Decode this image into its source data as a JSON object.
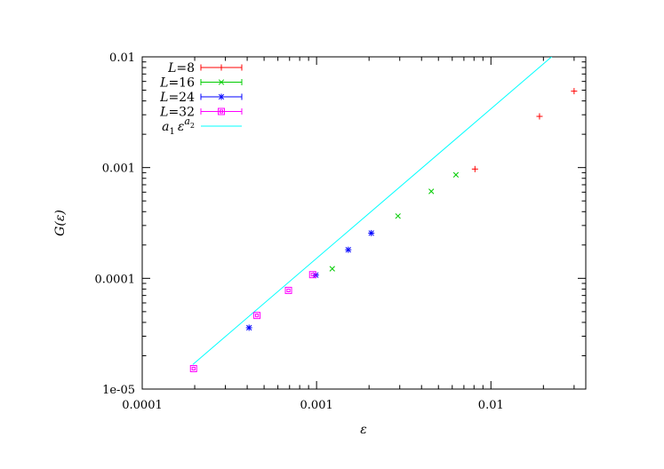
{
  "chart_data": {
    "type": "scatter",
    "title": "",
    "xlabel": "ε",
    "ylabel": "G(ε)",
    "xscale": "log",
    "yscale": "log",
    "xlim": [
      0.0001,
      0.035
    ],
    "ylim": [
      1e-05,
      0.01
    ],
    "x_ticks": [
      0.0001,
      0.001,
      0.01
    ],
    "x_tick_labels": [
      "0.0001",
      "0.001",
      "0.01"
    ],
    "y_ticks": [
      1e-05,
      0.0001,
      0.001,
      0.01
    ],
    "y_tick_labels": [
      "1e-05",
      "0.0001",
      "0.001",
      "0.01"
    ],
    "grid": false,
    "legend_position": "top-left",
    "series": [
      {
        "name": "L=8",
        "legend_var": "L",
        "legend_val": "=8",
        "marker": "plus",
        "color": "#ff0000",
        "x": [
          0.0081,
          0.019,
          0.03
        ],
        "y": [
          0.00097,
          0.0029,
          0.0049
        ]
      },
      {
        "name": "L=16",
        "legend_var": "L",
        "legend_val": "=16",
        "marker": "cross",
        "color": "#00cc00",
        "x": [
          0.00123,
          0.00293,
          0.00455,
          0.0063
        ],
        "y": [
          0.000122,
          0.000365,
          0.00061,
          0.00086
        ]
      },
      {
        "name": "L=24",
        "legend_var": "L",
        "legend_val": "=24",
        "marker": "star",
        "color": "#0000ff",
        "x": [
          0.00041,
          0.00099,
          0.00152,
          0.00206
        ],
        "y": [
          3.58e-05,
          0.000107,
          0.000181,
          0.000256
        ]
      },
      {
        "name": "L=32",
        "legend_var": "L",
        "legend_val": "=32",
        "marker": "box",
        "color": "#ff00ff",
        "x": [
          0.000197,
          0.000455,
          0.00069,
          0.00095
        ],
        "y": [
          1.53e-05,
          4.62e-05,
          7.78e-05,
          0.000108
        ]
      },
      {
        "name": "a1 ε^a2",
        "legend_parts": [
          "a",
          "1",
          "ε",
          "a",
          "2"
        ],
        "type": "line",
        "color": "#00ffff",
        "a1": 1.7,
        "a2": 1.35
      }
    ]
  }
}
